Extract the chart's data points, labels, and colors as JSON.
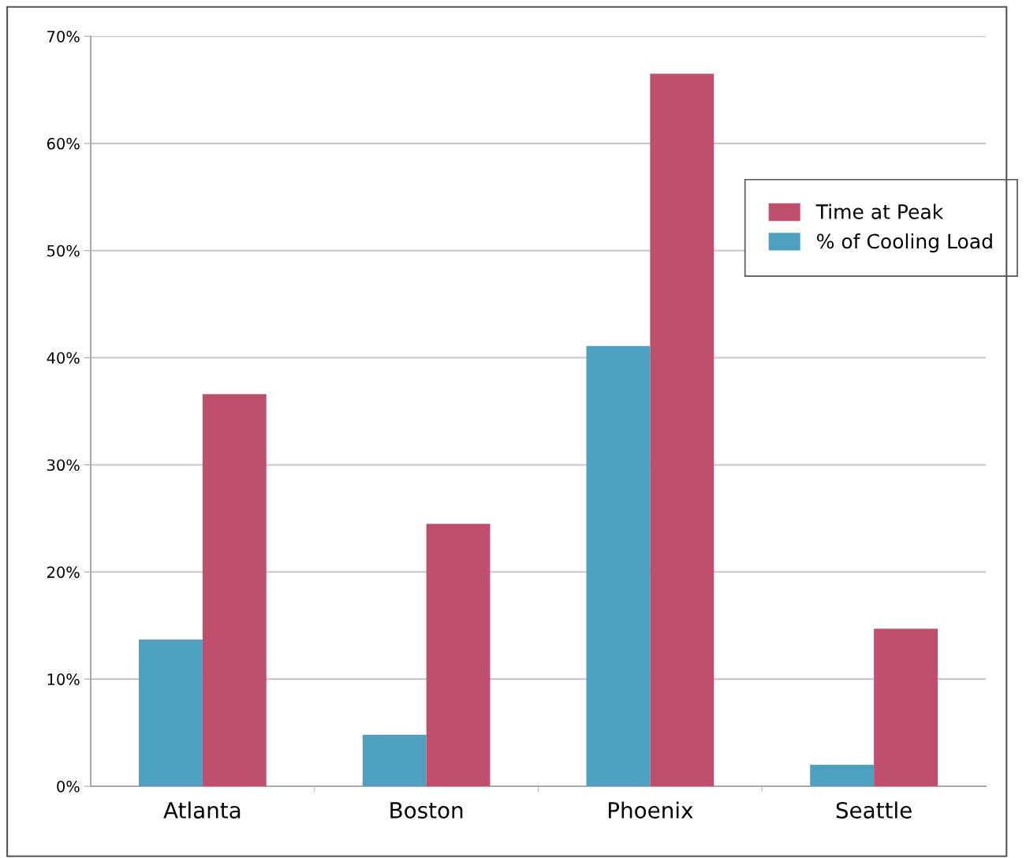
{
  "chart_data": {
    "type": "bar",
    "categories": [
      "Atlanta",
      "Boston",
      "Phoenix",
      "Seattle"
    ],
    "series": [
      {
        "name": "% of Cooling Load",
        "color": "#4f9fbf",
        "values": [
          13.7,
          4.8,
          41.1,
          2.0
        ]
      },
      {
        "name": "Time at Peak",
        "color": "#bf4f6c",
        "values": [
          36.6,
          24.5,
          66.5,
          14.7
        ]
      }
    ],
    "ylim": [
      0,
      70
    ],
    "yticks": [
      {
        "value": 0,
        "label": "0%"
      },
      {
        "value": 10,
        "label": "10%"
      },
      {
        "value": 20,
        "label": "20%"
      },
      {
        "value": 30,
        "label": "30%"
      },
      {
        "value": 40,
        "label": "40%"
      },
      {
        "value": 50,
        "label": "50%"
      },
      {
        "value": 60,
        "label": "60%"
      },
      {
        "value": 70,
        "label": "70%"
      }
    ],
    "grid": "y",
    "legend": "right"
  }
}
